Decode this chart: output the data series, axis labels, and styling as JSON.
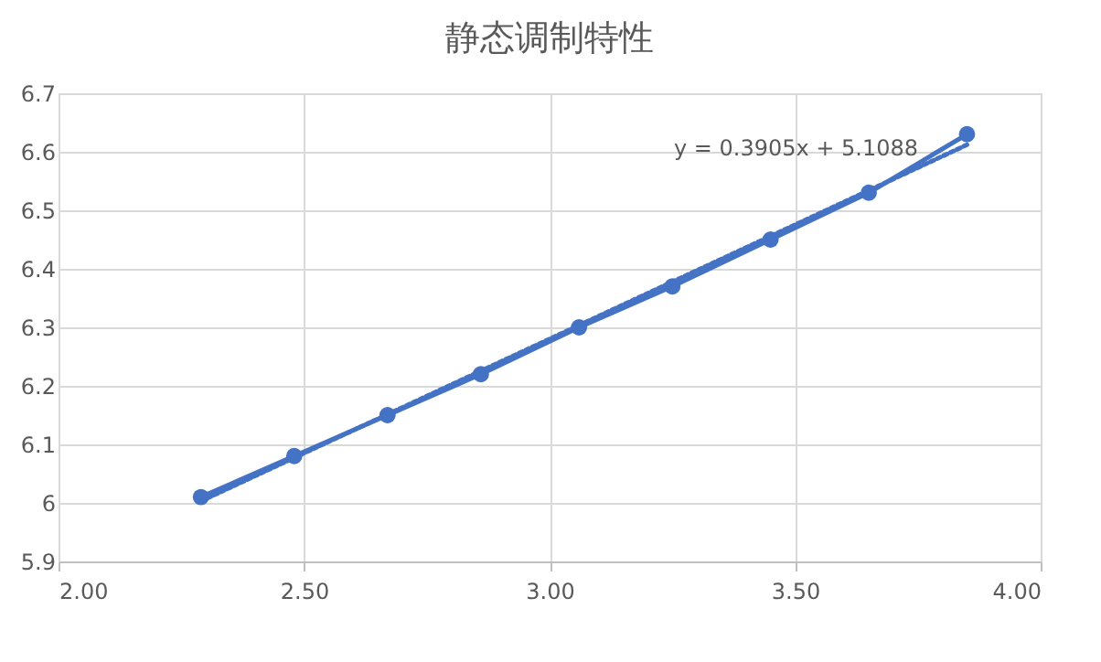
{
  "chart_data": {
    "type": "line",
    "title": "静态调制特性",
    "xlim": [
      2.0,
      4.0
    ],
    "xticks": [
      {
        "value": 2.0,
        "label": "2.00"
      },
      {
        "value": 2.5,
        "label": "2.50"
      },
      {
        "value": 3.0,
        "label": "3.00"
      },
      {
        "value": 3.5,
        "label": "3.50"
      },
      {
        "value": 4.0,
        "label": "4.00"
      }
    ],
    "ylim": [
      5.9,
      6.7
    ],
    "yticks": [
      5.9,
      6,
      6.1,
      6.2,
      6.3,
      6.4,
      6.5,
      6.6,
      6.7
    ],
    "grid": true,
    "series": [
      {
        "color": "#4472c4",
        "marker": "circle",
        "line_style": "solid",
        "x": [
          2.29,
          2.48,
          2.67,
          2.86,
          3.06,
          3.25,
          3.45,
          3.65,
          3.85
        ],
        "values": [
          6.01,
          6.08,
          6.15,
          6.22,
          6.3,
          6.37,
          6.45,
          6.53,
          6.63
        ]
      },
      {
        "color": "#4472c4",
        "marker": "none",
        "line_style": "dotted",
        "x": [
          2.29,
          3.85
        ],
        "values": [
          6.003,
          6.612
        ]
      }
    ],
    "annotations": [
      "y = 0.3905x + 5.1088"
    ]
  }
}
